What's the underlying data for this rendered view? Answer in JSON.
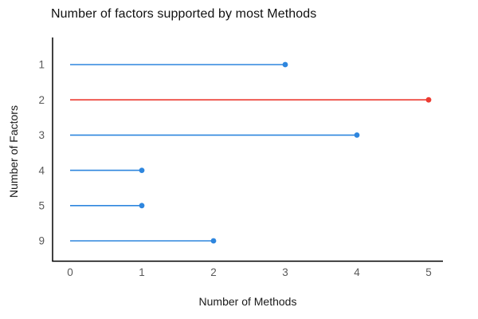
{
  "chart_data": {
    "type": "bar",
    "variant": "horizontal-lollipop",
    "title": "Number of factors supported by most Methods",
    "xlabel": "Number of Methods",
    "ylabel": "Number of Factors",
    "categories": [
      "1",
      "2",
      "3",
      "4",
      "5",
      "9"
    ],
    "values": [
      3,
      5,
      4,
      1,
      1,
      2
    ],
    "highlight_index": 1,
    "highlight_category": "2",
    "xticks": [
      "0",
      "1",
      "2",
      "3",
      "4",
      "5"
    ],
    "xlim": [
      0,
      5
    ],
    "grid": false,
    "legend_position": "none",
    "colors": {
      "stem": "#2E86DE",
      "highlight": "#EC3B31",
      "axis_line": "#000000",
      "tick_label": "#595959",
      "label_text": "#1A1A1A"
    }
  }
}
